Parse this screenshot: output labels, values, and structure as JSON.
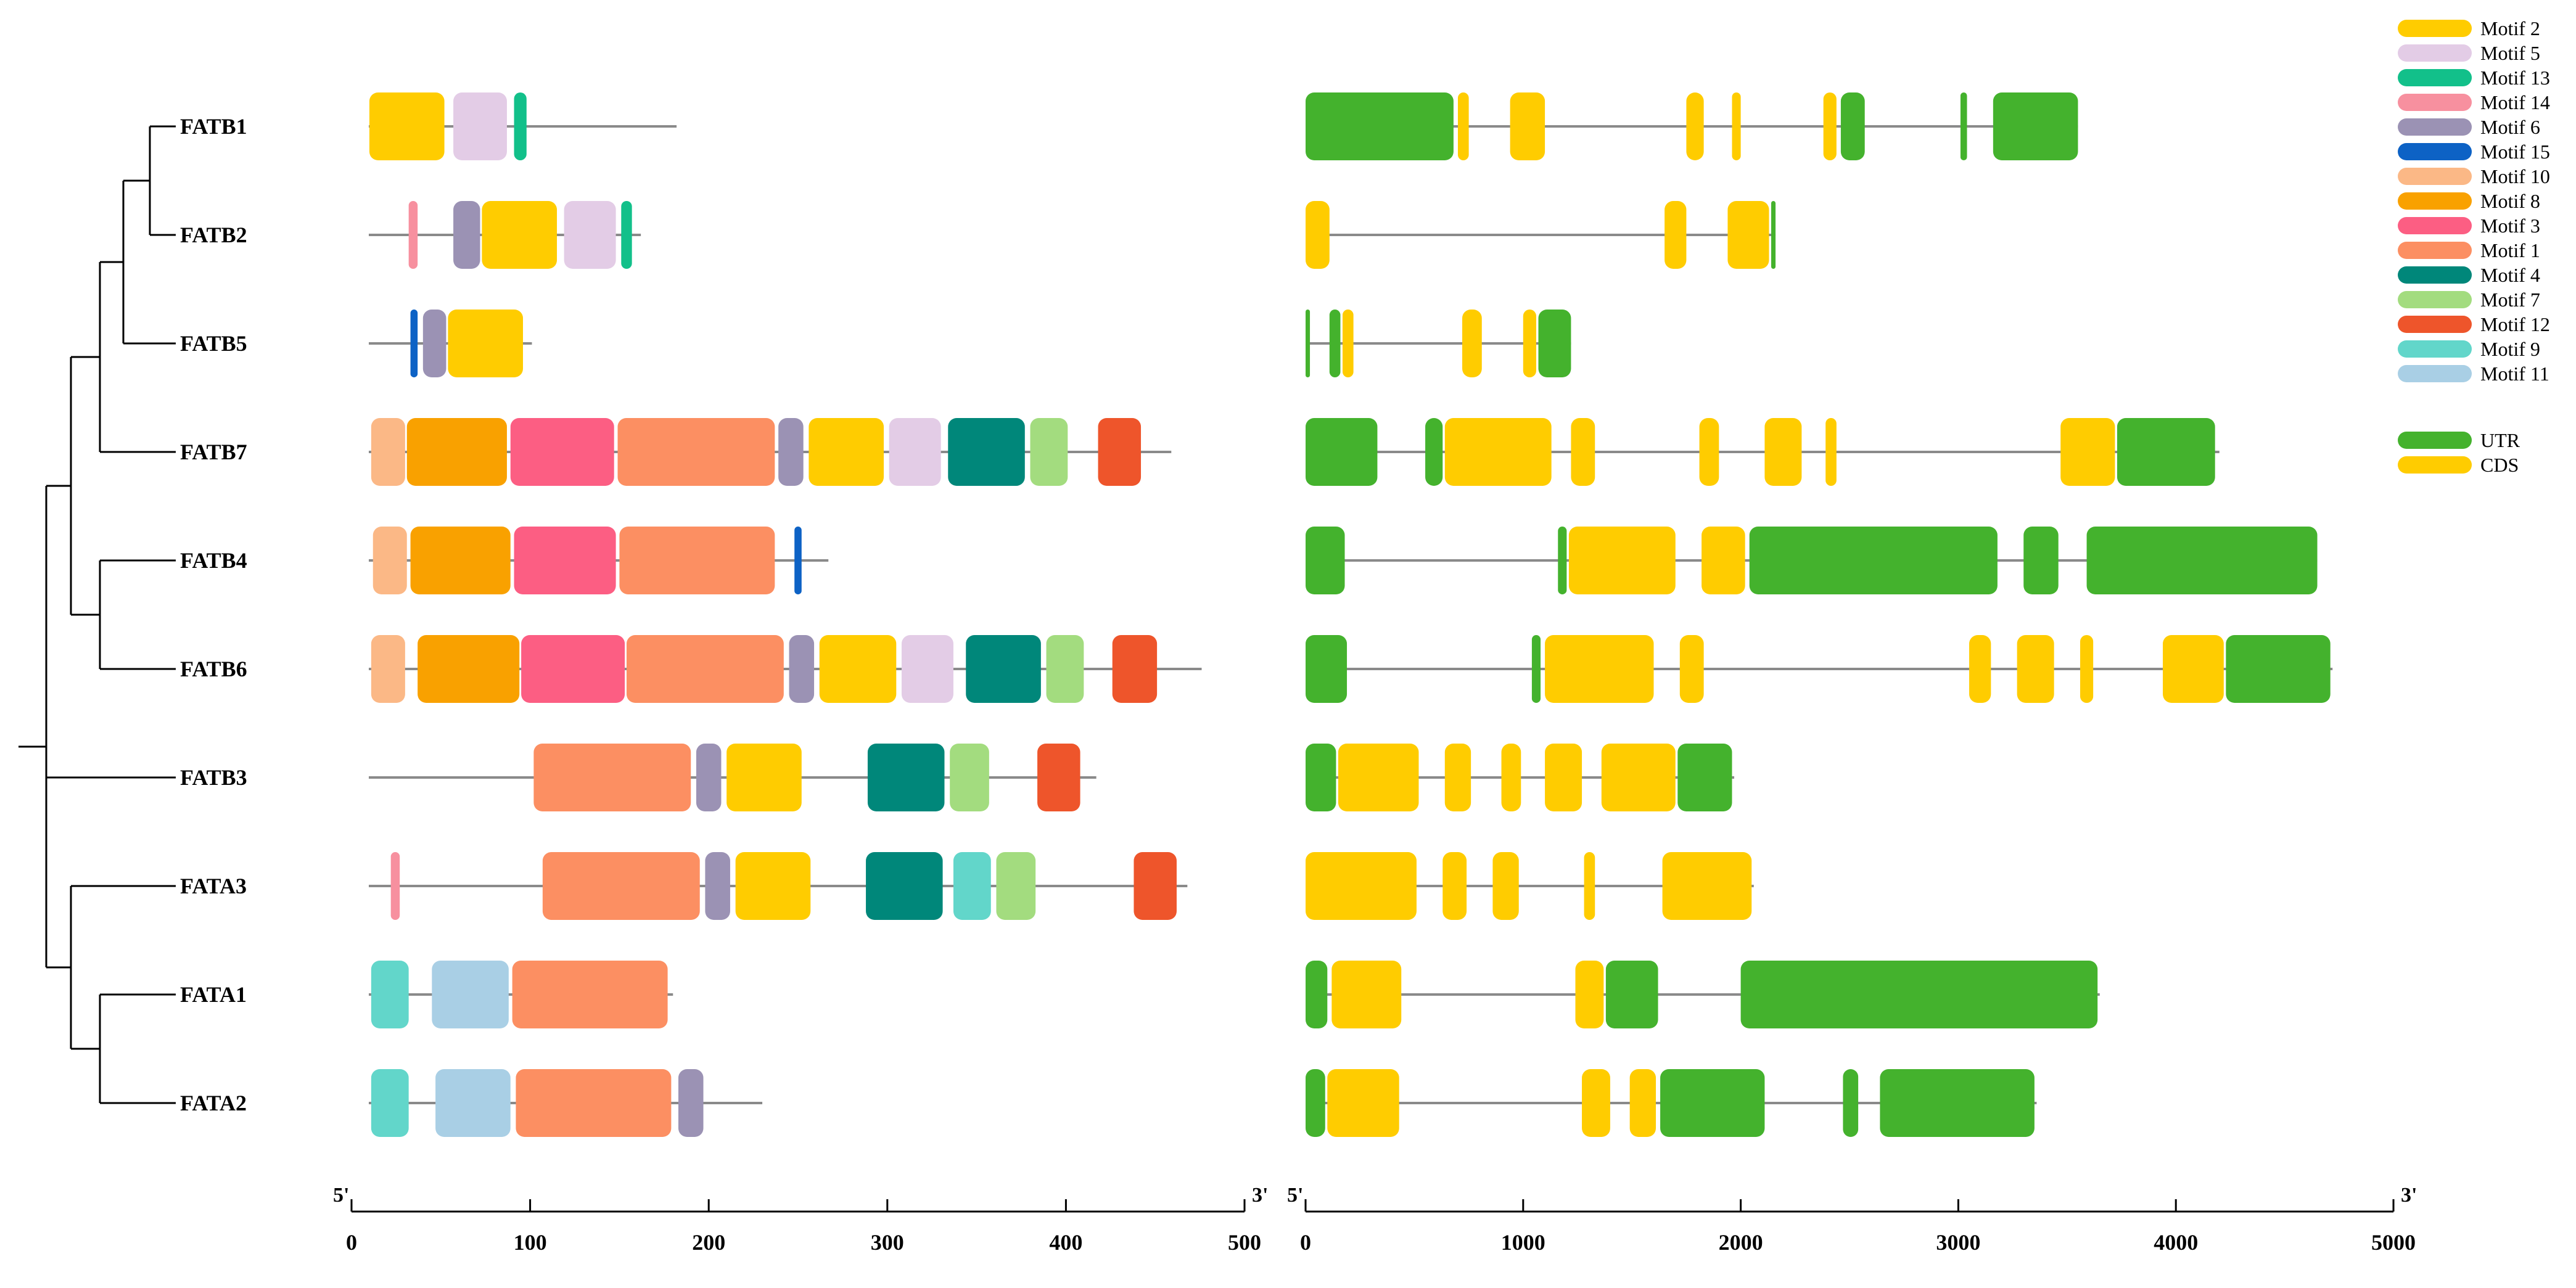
{
  "genes": [
    "FATB1",
    "FATB2",
    "FATB5",
    "FATB7",
    "FATB4",
    "FATB6",
    "FATB3",
    "FATA3",
    "FATA1",
    "FATA2"
  ],
  "motif_legend": [
    {
      "id": "Motif 2",
      "color": "#FFCC00"
    },
    {
      "id": "Motif 5",
      "color": "#E3CCE6"
    },
    {
      "id": "Motif 13",
      "color": "#12C08A"
    },
    {
      "id": "Motif 14",
      "color": "#F7909F"
    },
    {
      "id": "Motif 6",
      "color": "#9B92B4"
    },
    {
      "id": "Motif 15",
      "color": "#0D62C5"
    },
    {
      "id": "Motif 10",
      "color": "#FBB886"
    },
    {
      "id": "Motif 8",
      "color": "#F9A100"
    },
    {
      "id": "Motif 3",
      "color": "#FC5E83"
    },
    {
      "id": "Motif 1",
      "color": "#FC8F62"
    },
    {
      "id": "Motif 4",
      "color": "#00877A"
    },
    {
      "id": "Motif 7",
      "color": "#A3DC7F"
    },
    {
      "id": "Motif 12",
      "color": "#EE552B"
    },
    {
      "id": "Motif 9",
      "color": "#62D6CA"
    },
    {
      "id": "Motif 11",
      "color": "#A9CFE5"
    }
  ],
  "structure_legend": [
    {
      "id": "UTR",
      "color": "#44B22D"
    },
    {
      "id": "CDS",
      "color": "#FFCC00"
    }
  ],
  "chart_data": [
    {
      "type": "motif-map",
      "title": "",
      "xlabel": "",
      "x_start_label": "5'",
      "x_end_label": "3'",
      "xlim": [
        0,
        500
      ],
      "ticks": [
        "0",
        "100",
        "200",
        "300",
        "400",
        "500"
      ],
      "rows": [
        {
          "gene": "FATB1",
          "length": 182,
          "motifs": [
            [
              "Motif 2",
              10,
              52
            ],
            [
              "Motif 5",
              57,
              87
            ],
            [
              "Motif 13",
              91,
              98
            ]
          ]
        },
        {
          "gene": "FATB2",
          "length": 162,
          "motifs": [
            [
              "Motif 14",
              32,
              37
            ],
            [
              "Motif 6",
              57,
              72
            ],
            [
              "Motif 2",
              73,
              115
            ],
            [
              "Motif 5",
              119,
              148
            ],
            [
              "Motif 13",
              151,
              157
            ]
          ]
        },
        {
          "gene": "FATB5",
          "length": 101,
          "motifs": [
            [
              "Motif 15",
              33,
              37
            ],
            [
              "Motif 6",
              40,
              53
            ],
            [
              "Motif 2",
              54,
              96
            ]
          ]
        },
        {
          "gene": "FATB7",
          "length": 459,
          "motifs": [
            [
              "Motif 10",
              11,
              30
            ],
            [
              "Motif 8",
              31,
              87
            ],
            [
              "Motif 3",
              89,
              147
            ],
            [
              "Motif 1",
              149,
              237
            ],
            [
              "Motif 6",
              239,
              253
            ],
            [
              "Motif 2",
              256,
              298
            ],
            [
              "Motif 5",
              301,
              330
            ],
            [
              "Motif 4",
              334,
              377
            ],
            [
              "Motif 7",
              380,
              401
            ],
            [
              "Motif 12",
              418,
              442
            ]
          ]
        },
        {
          "gene": "FATB4",
          "length": 267,
          "motifs": [
            [
              "Motif 10",
              12,
              31
            ],
            [
              "Motif 8",
              33,
              89
            ],
            [
              "Motif 3",
              91,
              148
            ],
            [
              "Motif 1",
              150,
              237
            ],
            [
              "Motif 15",
              248,
              252
            ]
          ]
        },
        {
          "gene": "FATB6",
          "length": 476,
          "motifs": [
            [
              "Motif 10",
              11,
              30
            ],
            [
              "Motif 8",
              37,
              94
            ],
            [
              "Motif 3",
              95,
              153
            ],
            [
              "Motif 1",
              154,
              242
            ],
            [
              "Motif 6",
              245,
              259
            ],
            [
              "Motif 2",
              262,
              305
            ],
            [
              "Motif 5",
              308,
              337
            ],
            [
              "Motif 4",
              344,
              386
            ],
            [
              "Motif 7",
              389,
              410
            ],
            [
              "Motif 12",
              426,
              451
            ]
          ]
        },
        {
          "gene": "FATB3",
          "length": 417,
          "motifs": [
            [
              "Motif 1",
              102,
              190
            ],
            [
              "Motif 6",
              193,
              207
            ],
            [
              "Motif 2",
              210,
              252
            ],
            [
              "Motif 4",
              289,
              332
            ],
            [
              "Motif 7",
              335,
              357
            ],
            [
              "Motif 12",
              384,
              408
            ]
          ]
        },
        {
          "gene": "FATA3",
          "length": 468,
          "motifs": [
            [
              "Motif 14",
              22,
              27
            ],
            [
              "Motif 1",
              107,
              195
            ],
            [
              "Motif 6",
              198,
              212
            ],
            [
              "Motif 2",
              215,
              257
            ],
            [
              "Motif 4",
              288,
              331
            ],
            [
              "Motif 9",
              337,
              358
            ],
            [
              "Motif 7",
              361,
              383
            ],
            [
              "Motif 12",
              438,
              462
            ]
          ]
        },
        {
          "gene": "FATA1",
          "length": 180,
          "motifs": [
            [
              "Motif 9",
              11,
              32
            ],
            [
              "Motif 11",
              45,
              88
            ],
            [
              "Motif 1",
              90,
              177
            ]
          ]
        },
        {
          "gene": "FATA2",
          "length": 230,
          "motifs": [
            [
              "Motif 9",
              11,
              32
            ],
            [
              "Motif 11",
              47,
              89
            ],
            [
              "Motif 1",
              92,
              179
            ],
            [
              "Motif 6",
              183,
              197
            ]
          ]
        }
      ]
    },
    {
      "type": "gene-structure",
      "title": "",
      "xlabel": "",
      "x_start_label": "5'",
      "x_end_label": "3'",
      "xlim": [
        0,
        5000
      ],
      "ticks": [
        "0",
        "1000",
        "2000",
        "3000",
        "4000",
        "5000"
      ],
      "rows": [
        {
          "gene": "FATB1",
          "length": 3550,
          "segments": [
            [
              "UTR",
              0,
              680
            ],
            [
              "CDS",
              700,
              750
            ],
            [
              "CDS",
              940,
              1100
            ],
            [
              "CDS",
              1750,
              1830
            ],
            [
              "CDS",
              1960,
              2000
            ],
            [
              "CDS",
              2380,
              2440
            ],
            [
              "UTR",
              2460,
              2570
            ],
            [
              "UTR",
              3010,
              3040
            ],
            [
              "UTR",
              3160,
              3550
            ]
          ]
        },
        {
          "gene": "FATB2",
          "length": 2160,
          "segments": [
            [
              "CDS",
              0,
              110
            ],
            [
              "CDS",
              1650,
              1750
            ],
            [
              "CDS",
              1940,
              2130
            ],
            [
              "UTR",
              2140,
              2160
            ]
          ]
        },
        {
          "gene": "FATB5",
          "length": 1220,
          "segments": [
            [
              "UTR",
              0,
              20
            ],
            [
              "UTR",
              110,
              160
            ],
            [
              "CDS",
              170,
              220
            ],
            [
              "CDS",
              720,
              810
            ],
            [
              "CDS",
              1000,
              1060
            ],
            [
              "UTR",
              1070,
              1220
            ]
          ]
        },
        {
          "gene": "FATB7",
          "length": 4200,
          "segments": [
            [
              "UTR",
              0,
              330
            ],
            [
              "UTR",
              550,
              630
            ],
            [
              "CDS",
              640,
              1130
            ],
            [
              "CDS",
              1220,
              1330
            ],
            [
              "CDS",
              1810,
              1900
            ],
            [
              "CDS",
              2110,
              2280
            ],
            [
              "CDS",
              2390,
              2440
            ],
            [
              "CDS",
              3470,
              3720
            ],
            [
              "UTR",
              3730,
              4180
            ]
          ]
        },
        {
          "gene": "FATB4",
          "length": 4650,
          "segments": [
            [
              "UTR",
              0,
              180
            ],
            [
              "UTR",
              1160,
              1200
            ],
            [
              "CDS",
              1210,
              1700
            ],
            [
              "CDS",
              1820,
              2020
            ],
            [
              "UTR",
              2040,
              3180
            ],
            [
              "UTR",
              3300,
              3460
            ],
            [
              "UTR",
              3590,
              4650
            ]
          ]
        },
        {
          "gene": "FATB6",
          "length": 4720,
          "segments": [
            [
              "UTR",
              0,
              190
            ],
            [
              "UTR",
              1040,
              1080
            ],
            [
              "CDS",
              1100,
              1600
            ],
            [
              "CDS",
              1720,
              1830
            ],
            [
              "CDS",
              3050,
              3150
            ],
            [
              "CDS",
              3270,
              3440
            ],
            [
              "CDS",
              3560,
              3620
            ],
            [
              "CDS",
              3940,
              4220
            ],
            [
              "UTR",
              4230,
              4710
            ]
          ]
        },
        {
          "gene": "FATB3",
          "length": 1970,
          "segments": [
            [
              "UTR",
              0,
              140
            ],
            [
              "CDS",
              150,
              520
            ],
            [
              "CDS",
              640,
              760
            ],
            [
              "CDS",
              900,
              990
            ],
            [
              "CDS",
              1100,
              1270
            ],
            [
              "CDS",
              1360,
              1700
            ],
            [
              "UTR",
              1710,
              1960
            ]
          ]
        },
        {
          "gene": "FATA3",
          "length": 2060,
          "segments": [
            [
              "CDS",
              0,
              510
            ],
            [
              "CDS",
              630,
              740
            ],
            [
              "CDS",
              860,
              980
            ],
            [
              "CDS",
              1280,
              1330
            ],
            [
              "CDS",
              1640,
              2050
            ]
          ]
        },
        {
          "gene": "FATA1",
          "length": 3650,
          "segments": [
            [
              "UTR",
              0,
              100
            ],
            [
              "CDS",
              120,
              440
            ],
            [
              "CDS",
              1240,
              1370
            ],
            [
              "UTR",
              1380,
              1620
            ],
            [
              "UTR",
              2000,
              3640
            ]
          ]
        },
        {
          "gene": "FATA2",
          "length": 3360,
          "segments": [
            [
              "UTR",
              0,
              90
            ],
            [
              "CDS",
              100,
              430
            ],
            [
              "CDS",
              1270,
              1400
            ],
            [
              "CDS",
              1490,
              1610
            ],
            [
              "UTR",
              1630,
              2110
            ],
            [
              "UTR",
              2470,
              2540
            ],
            [
              "UTR",
              2640,
              3350
            ]
          ]
        }
      ]
    }
  ]
}
